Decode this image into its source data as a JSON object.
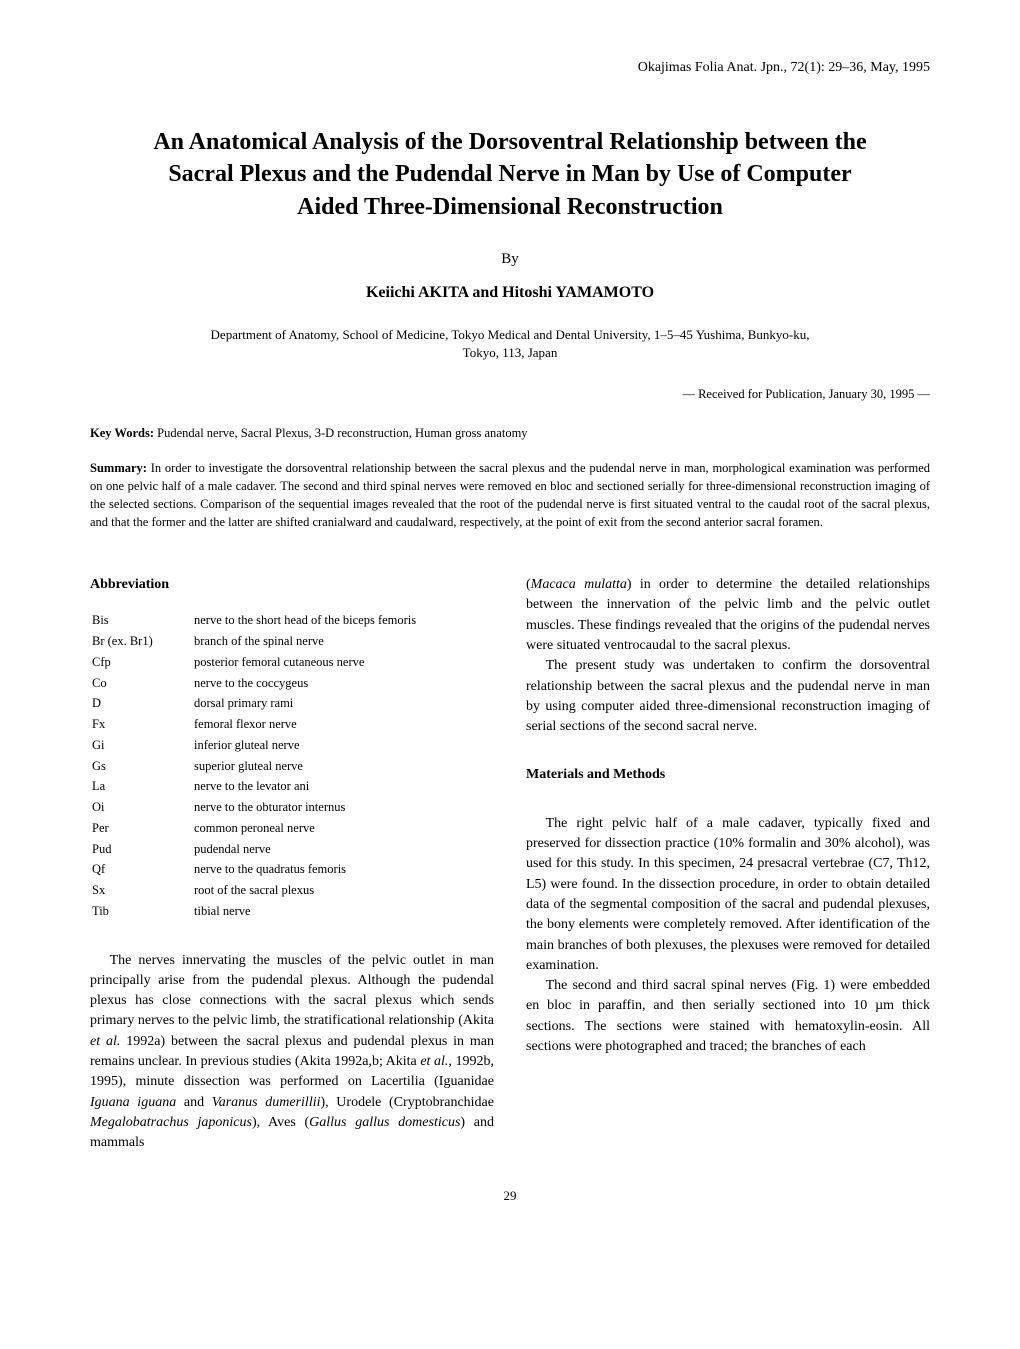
{
  "journal_header": "Okajimas Folia Anat. Jpn., 72(1): 29–36, May, 1995",
  "title_line1": "An Anatomical Analysis of the Dorsoventral Relationship between the",
  "title_line2": "Sacral Plexus and the Pudendal Nerve in Man by Use of Computer",
  "title_line3": "Aided Three-Dimensional Reconstruction",
  "by": "By",
  "authors": "Keiichi AKITA and Hitoshi YAMAMOTO",
  "affiliation_line1": "Department of Anatomy, School of Medicine, Tokyo Medical and Dental University, 1–5–45 Yushima, Bunkyo-ku,",
  "affiliation_line2": "Tokyo, 113, Japan",
  "received": "— Received for Publication, January 30, 1995 —",
  "keywords_label": "Key Words:",
  "keywords_text": "  Pudendal nerve, Sacral Plexus, 3-D reconstruction, Human gross anatomy",
  "summary_label": "Summary:",
  "summary_text": " In order to investigate the dorsoventral relationship between the sacral plexus and the pudendal nerve in man, morphological examination was performed on one pelvic half of a male cadaver. The second and third spinal nerves were removed en bloc and sectioned serially for three-dimensional reconstruction imaging of the selected sections. Comparison of the sequential images revealed that the root of the pudendal nerve is first situated ventral to the caudal root of the sacral plexus, and that the former and the latter are shifted cranialward and caudalward, respectively, at the point of exit from the second anterior sacral foramen.",
  "abbrev_heading": "Abbreviation",
  "abbreviations": [
    {
      "abbr": "Bis",
      "def": "nerve to the short head of the biceps femoris"
    },
    {
      "abbr": "Br (ex. Br1)",
      "def": "branch of the spinal nerve"
    },
    {
      "abbr": "Cfp",
      "def": "posterior femoral cutaneous nerve"
    },
    {
      "abbr": "Co",
      "def": "nerve to the coccygeus"
    },
    {
      "abbr": "D",
      "def": "dorsal primary rami"
    },
    {
      "abbr": "Fx",
      "def": "femoral flexor nerve"
    },
    {
      "abbr": "Gi",
      "def": "inferior gluteal nerve"
    },
    {
      "abbr": "Gs",
      "def": "superior gluteal nerve"
    },
    {
      "abbr": "La",
      "def": "nerve to the levator ani"
    },
    {
      "abbr": "Oi",
      "def": "nerve to the obturator internus"
    },
    {
      "abbr": "Per",
      "def": "common peroneal nerve"
    },
    {
      "abbr": "Pud",
      "def": "pudendal nerve"
    },
    {
      "abbr": "Qf",
      "def": "nerve to the quadratus femoris"
    },
    {
      "abbr": "Sx",
      "def": "root of the sacral plexus"
    },
    {
      "abbr": "Tib",
      "def": "tibial nerve"
    }
  ],
  "left_para_1a": "The nerves innervating the muscles of the pelvic outlet in man principally arise from the pudendal plexus. Although the pudendal plexus has close connections with the sacral plexus which sends primary nerves to the pelvic limb, the stratificational relationship (Akita ",
  "left_para_1b_it": "et al.",
  "left_para_1c": " 1992a) between the sacral plexus and pudendal plexus in man remains unclear. In previous studies (Akita 1992a,b; Akita ",
  "left_para_1d_it": "et al.",
  "left_para_1e": ", 1992b, 1995), minute dissection was performed on Lacertilia (Iguanidae ",
  "left_para_1f_it": "Iguana iguana",
  "left_para_1g": " and ",
  "left_para_1h_it": "Varanus dumerillii",
  "left_para_1i": "), Urodele (Cryptobranchidae ",
  "left_para_1j_it": "Megalobatrachus japonicus",
  "left_para_1k": "), Aves (",
  "left_para_1l_it": "Gallus gallus domesticus",
  "left_para_1m": ") and mammals",
  "right_para_1a": "(",
  "right_para_1b_it": "Macaca mulatta",
  "right_para_1c": ") in order to determine the detailed relationships between the innervation of the pelvic limb and the pelvic outlet muscles. These findings revealed that the origins of the pudendal nerves were situated ventrocaudal to the sacral plexus.",
  "right_para_2": "The present study was undertaken to confirm the dorsoventral relationship between the sacral plexus and the pudendal nerve in man by using computer aided three-dimensional reconstruction imaging of serial sections of the second sacral nerve.",
  "methods_heading": "Materials and Methods",
  "right_para_3": "The right pelvic half of a male cadaver, typically fixed and preserved for dissection practice (10% formalin and 30% alcohol), was used for this study. In this specimen, 24 presacral vertebrae (C7, Th12, L5) were found. In the dissection procedure, in order to obtain detailed data of the segmental composition of the sacral and pudendal plexuses, the bony elements were completely removed. After identification of the main branches of both plexuses, the plexuses were removed for detailed examination.",
  "right_para_4": "The second and third sacral spinal nerves (Fig. 1) were embedded en bloc in paraffin, and then serially sectioned into 10 µm thick sections. The sections were stained with hematoxylin-eosin. All sections were photographed and traced; the branches of each",
  "page_number": "29"
}
